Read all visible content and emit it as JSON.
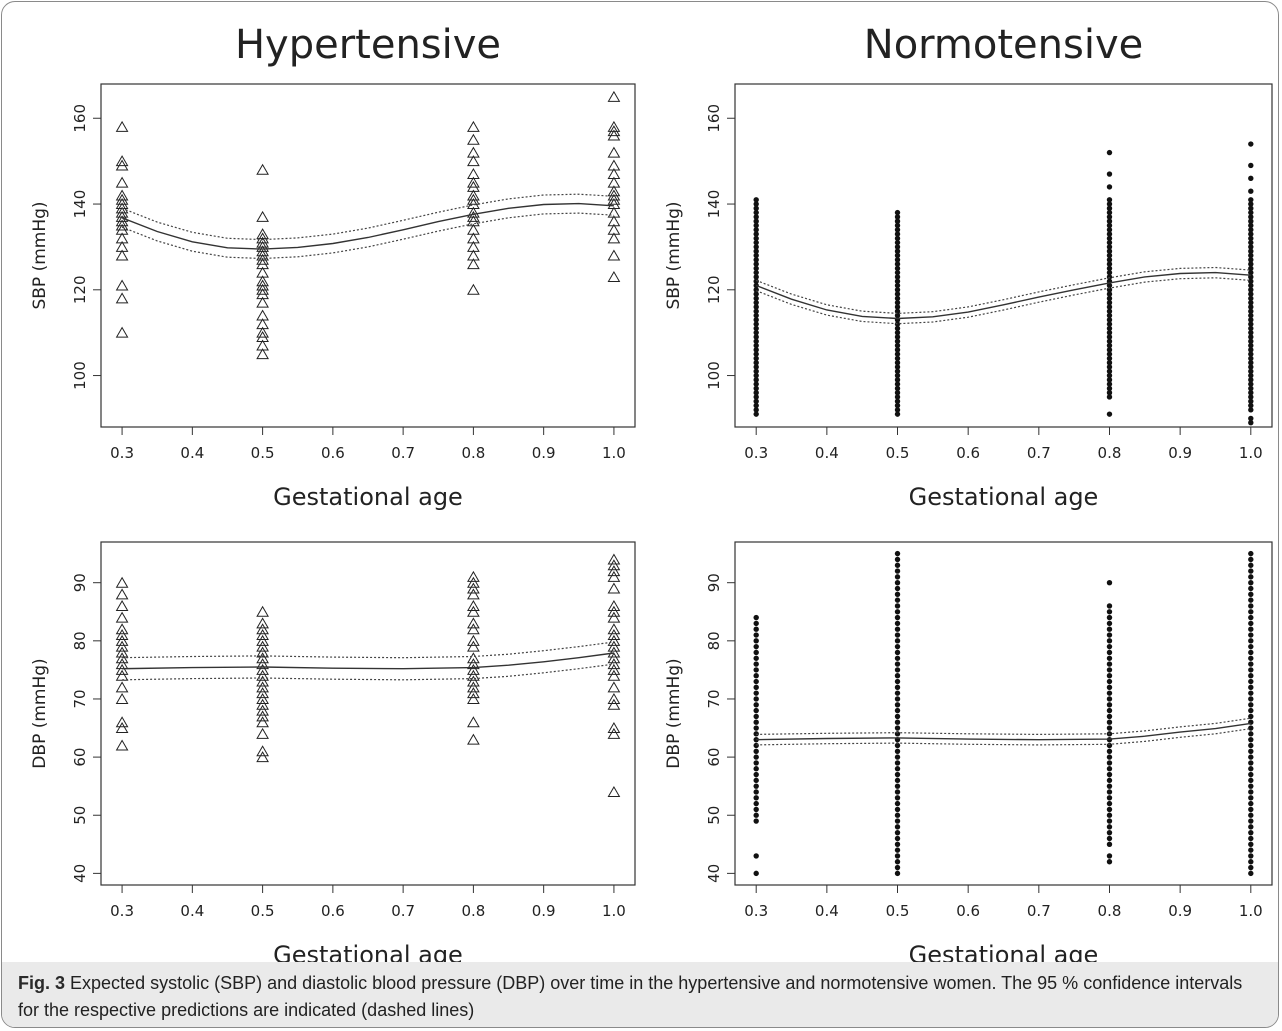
{
  "figure": {
    "caption_label": "Fig. 3",
    "caption_text": "Expected systolic (SBP) and diastolic blood pressure (DBP) over time in the hypertensive and normotensive women. The 95 % confidence intervals for the respective predictions are indicated (dashed lines)"
  },
  "chart_data": [
    {
      "type": "scatter",
      "panel": "top-left",
      "title": "Hypertensive",
      "xlabel": "Gestational age",
      "ylabel": "SBP (mmHg)",
      "xlim": [
        0.27,
        1.03
      ],
      "ylim": [
        88,
        168
      ],
      "xticks": [
        "0.3",
        "0.4",
        "0.5",
        "0.6",
        "0.7",
        "0.8",
        "0.9",
        "1.0"
      ],
      "yticks": [
        "100",
        "120",
        "140",
        "160"
      ],
      "marker": "triangle",
      "points": [
        {
          "x": 0.3,
          "y": [
            110,
            118,
            121,
            128,
            130,
            132,
            134,
            135,
            136,
            137,
            138,
            139,
            140,
            141,
            142,
            145,
            149,
            150,
            158
          ]
        },
        {
          "x": 0.5,
          "y": [
            105,
            107,
            109,
            110,
            112,
            114,
            117,
            119,
            120,
            121,
            122,
            124,
            126,
            127,
            128,
            129,
            130,
            131,
            132,
            133,
            137,
            148
          ]
        },
        {
          "x": 0.8,
          "y": [
            120,
            126,
            128,
            130,
            132,
            134,
            136,
            137,
            138,
            140,
            141,
            142,
            144,
            145,
            147,
            150,
            152,
            155,
            158
          ]
        },
        {
          "x": 1.0,
          "y": [
            123,
            128,
            132,
            134,
            136,
            138,
            140,
            141,
            142,
            143,
            145,
            147,
            149,
            152,
            156,
            157,
            158,
            165
          ]
        }
      ],
      "fit": {
        "x": [
          0.3,
          0.35,
          0.4,
          0.45,
          0.5,
          0.55,
          0.6,
          0.65,
          0.7,
          0.75,
          0.8,
          0.85,
          0.9,
          0.95,
          1.0
        ],
        "y": [
          136.8,
          133.6,
          131.2,
          129.8,
          129.5,
          129.9,
          130.8,
          132.2,
          134.0,
          135.9,
          137.6,
          139.0,
          139.9,
          140.1,
          139.6
        ]
      },
      "ci_half_width": 2.2
    },
    {
      "type": "scatter",
      "panel": "top-right",
      "title": "Normotensive",
      "xlabel": "Gestational age",
      "ylabel": "SBP (mmHg)",
      "xlim": [
        0.27,
        1.03
      ],
      "ylim": [
        88,
        168
      ],
      "xticks": [
        "0.3",
        "0.4",
        "0.5",
        "0.6",
        "0.7",
        "0.8",
        "0.9",
        "1.0"
      ],
      "yticks": [
        "100",
        "120",
        "140",
        "160"
      ],
      "marker": "dot",
      "points": [
        {
          "x": 0.3,
          "range": [
            91,
            141
          ]
        },
        {
          "x": 0.5,
          "range": [
            91,
            138
          ]
        },
        {
          "x": 0.8,
          "range": [
            95,
            141
          ],
          "extra": [
            91,
            144,
            147,
            152
          ]
        },
        {
          "x": 1.0,
          "range": [
            92,
            141
          ],
          "extra": [
            90,
            89,
            143,
            146,
            149,
            154
          ]
        }
      ],
      "fit": {
        "x": [
          0.3,
          0.35,
          0.4,
          0.45,
          0.5,
          0.55,
          0.6,
          0.65,
          0.7,
          0.75,
          0.8,
          0.85,
          0.9,
          0.95,
          1.0
        ],
        "y": [
          121.0,
          117.8,
          115.3,
          113.8,
          113.3,
          113.7,
          114.8,
          116.5,
          118.3,
          120.0,
          121.6,
          123.0,
          123.8,
          124.0,
          123.4
        ]
      },
      "ci_half_width": 1.2
    },
    {
      "type": "scatter",
      "panel": "bottom-left",
      "title": "",
      "xlabel": "Gestational age",
      "ylabel": "DBP (mmHg)",
      "xlim": [
        0.27,
        1.03
      ],
      "ylim": [
        38,
        97
      ],
      "xticks": [
        "0.3",
        "0.4",
        "0.5",
        "0.6",
        "0.7",
        "0.8",
        "0.9",
        "1.0"
      ],
      "yticks": [
        "40",
        "50",
        "60",
        "70",
        "80",
        "90"
      ],
      "marker": "triangle",
      "points": [
        {
          "x": 0.3,
          "y": [
            62,
            65,
            66,
            70,
            72,
            74,
            75,
            76,
            77,
            78,
            79,
            80,
            81,
            82,
            84,
            86,
            88,
            90
          ]
        },
        {
          "x": 0.5,
          "y": [
            60,
            61,
            64,
            66,
            67,
            68,
            69,
            70,
            71,
            72,
            73,
            74,
            75,
            76,
            77,
            78,
            79,
            80,
            81,
            82,
            83,
            85
          ]
        },
        {
          "x": 0.8,
          "y": [
            63,
            66,
            70,
            71,
            72,
            73,
            74,
            75,
            76,
            77,
            79,
            80,
            82,
            83,
            85,
            86,
            88,
            89,
            90,
            91
          ]
        },
        {
          "x": 1.0,
          "y": [
            54,
            64,
            65,
            69,
            70,
            72,
            74,
            75,
            76,
            77,
            78,
            79,
            80,
            81,
            82,
            84,
            85,
            86,
            89,
            91,
            92,
            93,
            94
          ]
        }
      ],
      "fit": {
        "x": [
          0.3,
          0.4,
          0.5,
          0.6,
          0.7,
          0.8,
          0.85,
          0.9,
          0.95,
          1.0
        ],
        "y": [
          75.2,
          75.4,
          75.5,
          75.3,
          75.2,
          75.4,
          75.8,
          76.4,
          77.1,
          77.9
        ]
      },
      "ci_half_width": 1.9
    },
    {
      "type": "scatter",
      "panel": "bottom-right",
      "title": "",
      "xlabel": "Gestational age",
      "ylabel": "DBP (mmHg)",
      "xlim": [
        0.27,
        1.03
      ],
      "ylim": [
        38,
        97
      ],
      "xticks": [
        "0.3",
        "0.4",
        "0.5",
        "0.6",
        "0.7",
        "0.8",
        "0.9",
        "1.0"
      ],
      "yticks": [
        "40",
        "50",
        "60",
        "70",
        "80",
        "90"
      ],
      "marker": "dot",
      "points": [
        {
          "x": 0.3,
          "range": [
            49,
            84
          ],
          "extra": [
            43,
            40
          ]
        },
        {
          "x": 0.5,
          "range": [
            40,
            95
          ]
        },
        {
          "x": 0.8,
          "range": [
            47,
            86
          ],
          "extra": [
            46,
            45,
            43,
            42,
            90
          ]
        },
        {
          "x": 1.0,
          "range": [
            40,
            95
          ]
        }
      ],
      "fit": {
        "x": [
          0.3,
          0.4,
          0.5,
          0.6,
          0.7,
          0.8,
          0.85,
          0.9,
          0.95,
          1.0
        ],
        "y": [
          63.0,
          63.2,
          63.3,
          63.1,
          63.0,
          63.1,
          63.6,
          64.3,
          64.9,
          65.8
        ]
      },
      "ci_half_width": 0.9
    }
  ]
}
